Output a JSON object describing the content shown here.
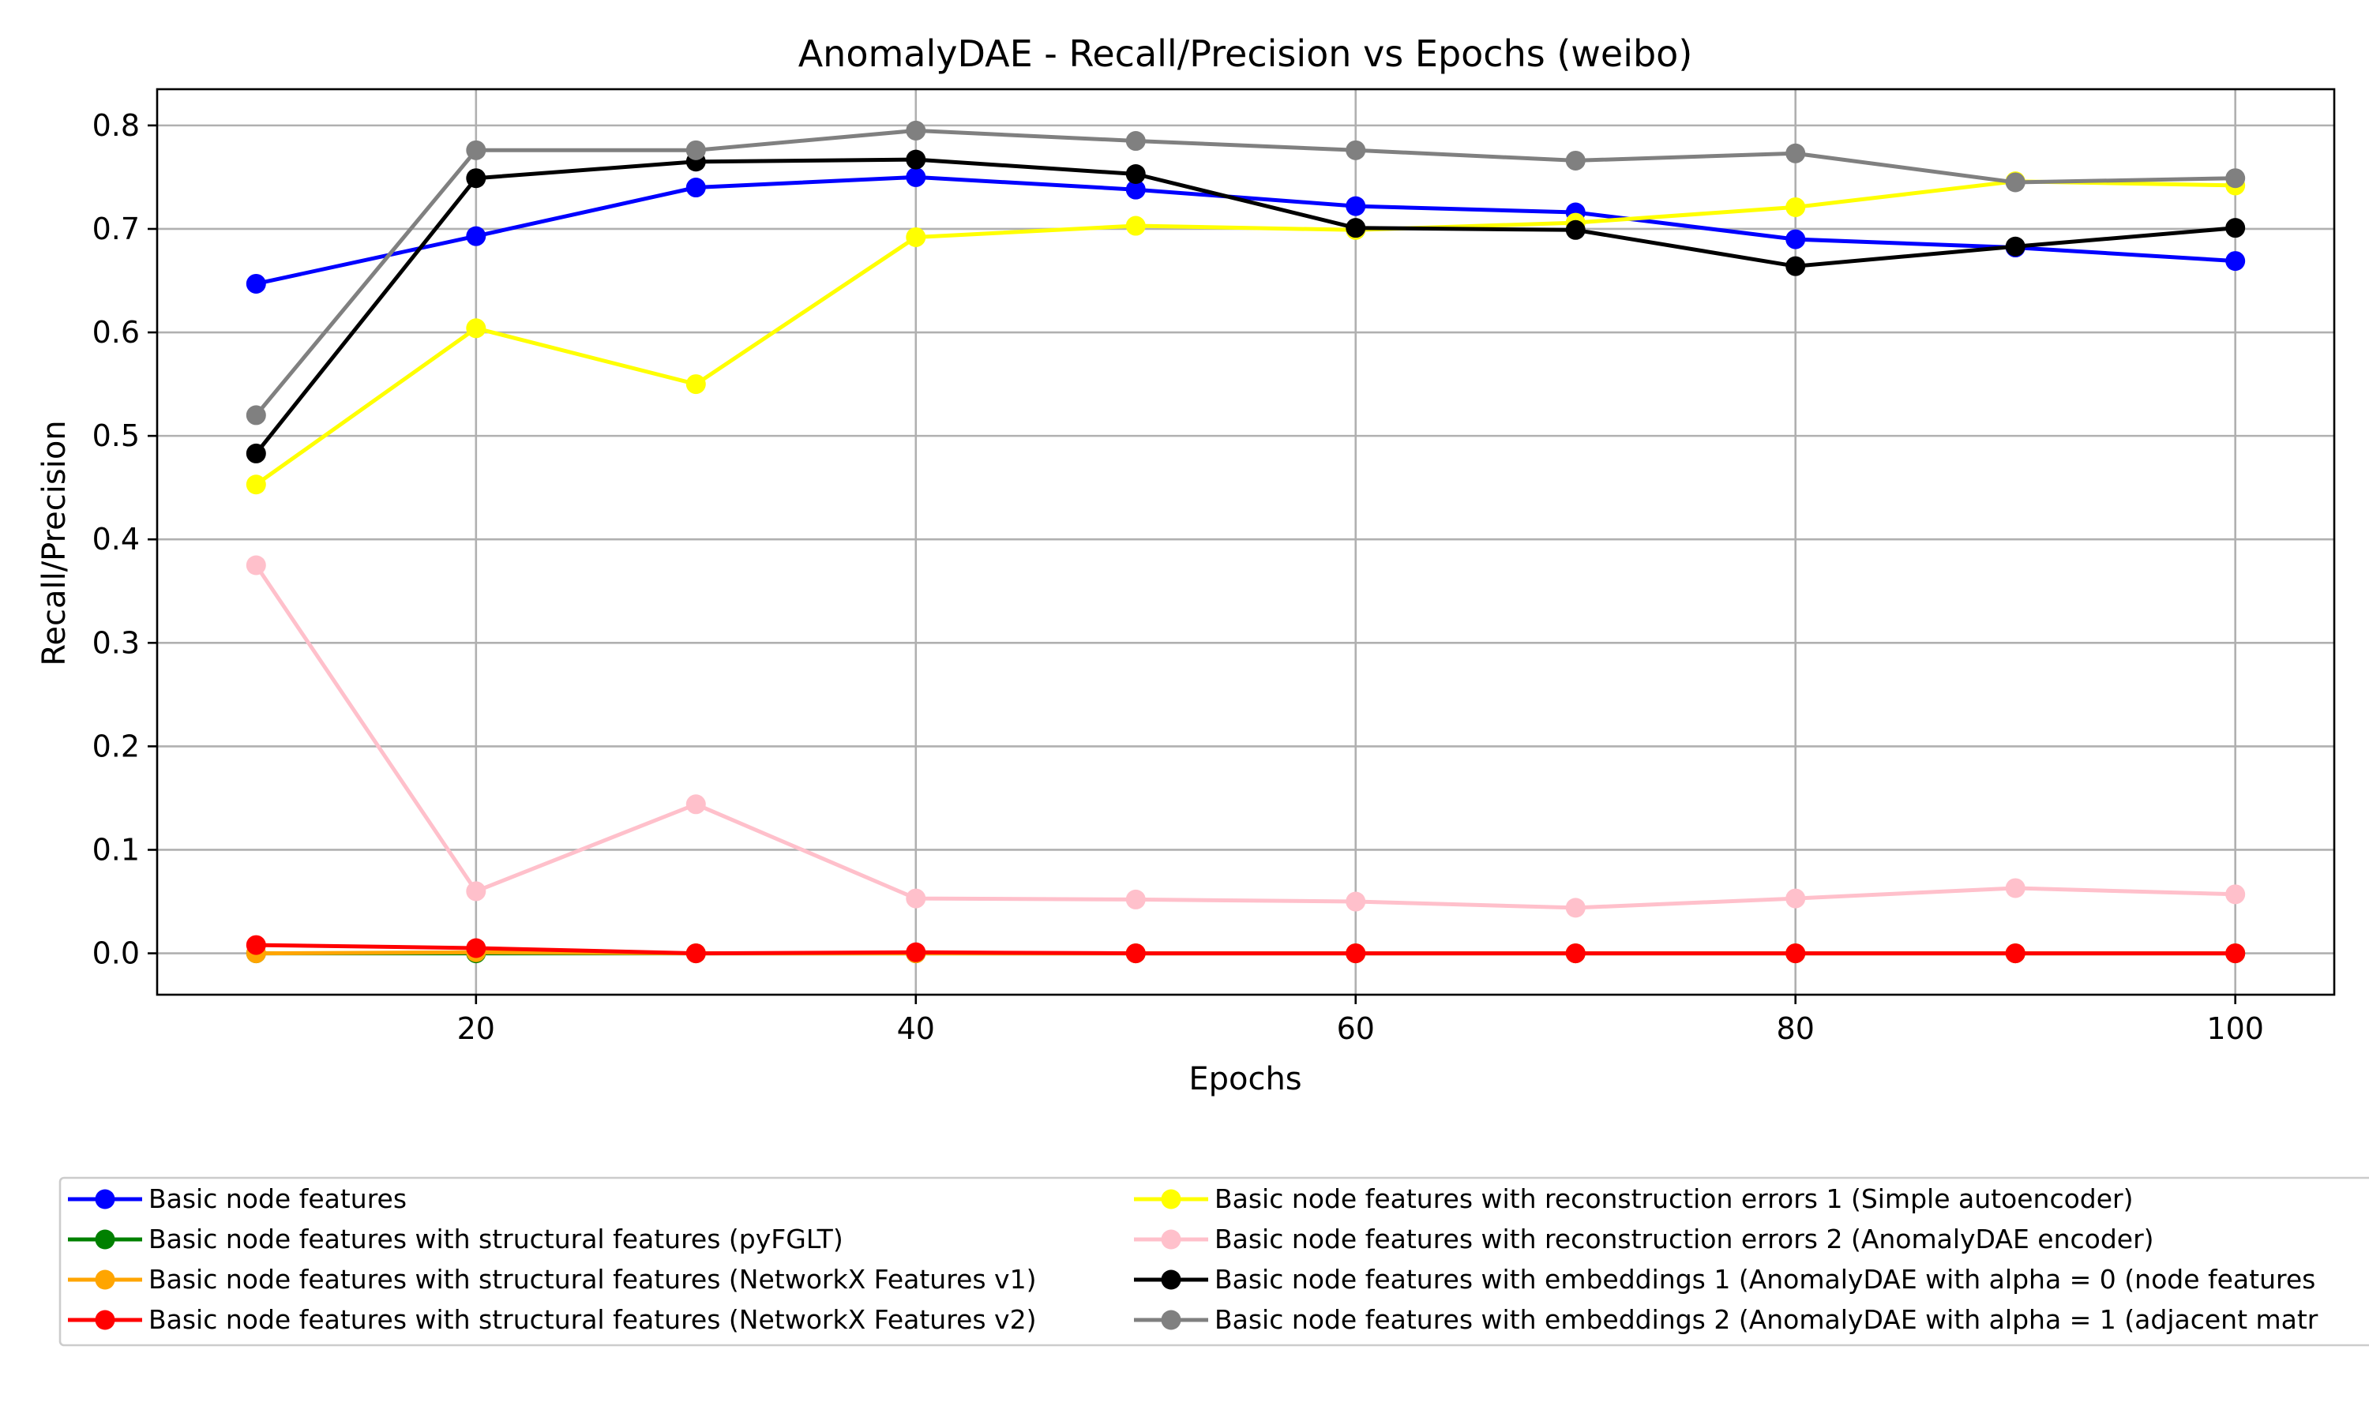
{
  "chart_data": {
    "type": "line",
    "title": "AnomalyDAE - Recall/Precision vs Epochs (weibo)",
    "xlabel": "Epochs",
    "ylabel": "Recall/Precision",
    "xlim": [
      5.5,
      104.5
    ],
    "ylim": [
      -0.04,
      0.835
    ],
    "xticks": [
      20,
      40,
      60,
      80,
      100
    ],
    "yticks": [
      0.0,
      0.1,
      0.2,
      0.3,
      0.4,
      0.5,
      0.6,
      0.7,
      0.8
    ],
    "ytick_labels": [
      "0.0",
      "0.1",
      "0.2",
      "0.3",
      "0.4",
      "0.5",
      "0.6",
      "0.7",
      "0.8"
    ],
    "grid": true,
    "legend_placement": "below",
    "x": [
      10,
      20,
      30,
      40,
      50,
      60,
      70,
      80,
      90,
      100
    ],
    "series": [
      {
        "name": "Basic node features",
        "color": "#0000ff",
        "values": [
          0.647,
          0.693,
          0.74,
          0.75,
          0.738,
          0.722,
          0.716,
          0.69,
          0.682,
          0.669
        ]
      },
      {
        "name": "Basic node features with structural features (pyFGLT)",
        "color": "#008000",
        "values": [
          0.0,
          0.0,
          0.0,
          0.0,
          0.0,
          0.0,
          0.0,
          0.0,
          0.0,
          0.0
        ]
      },
      {
        "name": "Basic node features with structural features (NetworkX Features v1)",
        "color": "#ffa500",
        "values": [
          0.0,
          0.001,
          0.0,
          0.0,
          0.0,
          0.0,
          0.0,
          0.0,
          0.0,
          0.0
        ]
      },
      {
        "name": "Basic node features with structural features (NetworkX Features v2)",
        "color": "#ff0000",
        "values": [
          0.008,
          0.005,
          0.0,
          0.001,
          0.0,
          0.0,
          0.0,
          0.0,
          0.0,
          0.0
        ]
      },
      {
        "name": "Basic node features with reconstruction errors 1 (Simple autoencoder)",
        "color": "#ffff00",
        "values": [
          0.453,
          0.604,
          0.55,
          0.692,
          0.703,
          0.699,
          0.706,
          0.721,
          0.746,
          0.742
        ]
      },
      {
        "name": "Basic node features with reconstruction errors 2 (AnomalyDAE encoder)",
        "color": "#ffc0cb",
        "values": [
          0.375,
          0.06,
          0.144,
          0.053,
          0.052,
          0.05,
          0.044,
          0.053,
          0.063,
          0.057
        ]
      },
      {
        "name": "Basic node features with embeddings 1 (AnomalyDAE with alpha = 0 (node features",
        "color": "#000000",
        "values": [
          0.483,
          0.749,
          0.765,
          0.767,
          0.753,
          0.701,
          0.699,
          0.664,
          0.683,
          0.701
        ]
      },
      {
        "name": "Basic node features with embeddings 2 (AnomalyDAE with alpha = 1 (adjacent matr",
        "color": "#808080",
        "values": [
          0.52,
          0.776,
          0.776,
          0.795,
          0.785,
          0.776,
          0.766,
          0.773,
          0.745,
          0.749
        ]
      }
    ]
  }
}
